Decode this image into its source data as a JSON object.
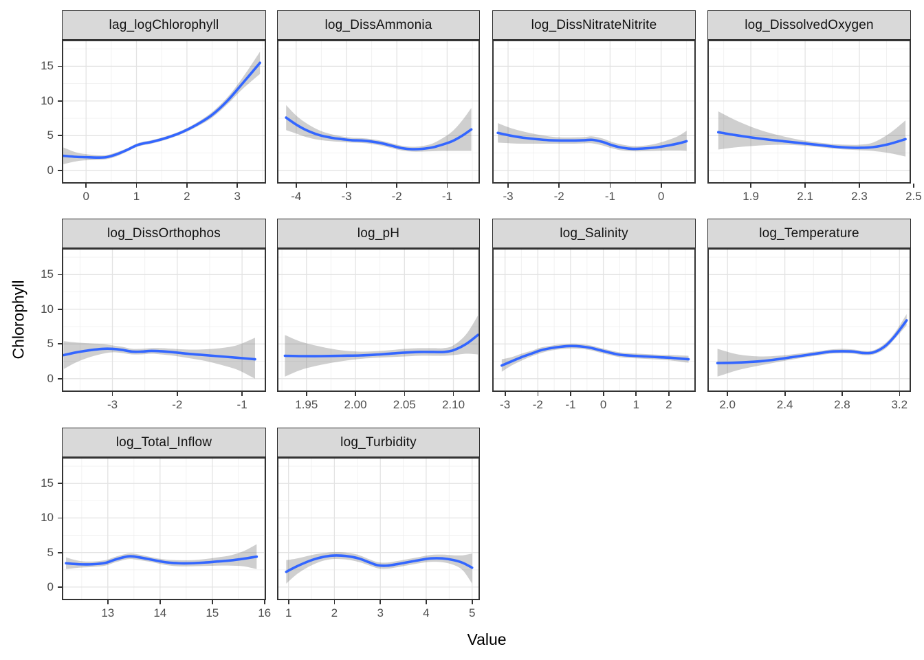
{
  "figure": {
    "colors": {
      "line": "#3366FF",
      "ribbon": "rgba(110,110,110,0.33)",
      "strip_bg": "#D9D9D9",
      "strip_border": "#2b2b2b",
      "panel_border": "#333333",
      "grid_major": "#E3E3E3",
      "grid_minor": "#F0F0F0",
      "axis_text": "#4D4D4D",
      "tick_mark": "#333333"
    }
  },
  "chart_data": {
    "type": "line",
    "title": "",
    "xlabel": "Value",
    "ylabel": "Chlorophyll",
    "ylim": [
      -1.9,
      18.8
    ],
    "yticks": [
      0,
      5,
      10,
      15
    ],
    "ytick_labels": [
      "0",
      "5",
      "10",
      "15"
    ],
    "grid": true,
    "legend": "none",
    "facets": [
      {
        "title": "lag_logChlorophyll",
        "row": 0,
        "col": 0,
        "xlim": [
          -0.48,
          3.57
        ],
        "xticks": [
          0,
          1,
          2,
          3
        ],
        "xtick_labels": [
          "0",
          "1",
          "2",
          "3"
        ],
        "x": [
          -0.45,
          -0.2,
          0.0,
          0.2,
          0.4,
          0.6,
          0.8,
          1.0,
          1.15,
          1.3,
          1.6,
          1.9,
          2.2,
          2.5,
          2.8,
          3.1,
          3.45
        ],
        "y": [
          2.1,
          1.95,
          1.9,
          1.85,
          1.9,
          2.3,
          2.9,
          3.6,
          3.9,
          4.1,
          4.7,
          5.5,
          6.6,
          8.0,
          10.0,
          12.5,
          15.5
        ],
        "lo": [
          0.9,
          1.3,
          1.45,
          1.5,
          1.6,
          2.0,
          2.65,
          3.35,
          3.65,
          3.85,
          4.45,
          5.25,
          6.3,
          7.6,
          9.5,
          11.7,
          13.9
        ],
        "hi": [
          3.3,
          2.6,
          2.35,
          2.2,
          2.2,
          2.6,
          3.15,
          3.85,
          4.15,
          4.35,
          4.95,
          5.75,
          6.9,
          8.4,
          10.5,
          13.3,
          17.1
        ]
      },
      {
        "title": "log_DissAmmonia",
        "row": 0,
        "col": 1,
        "xlim": [
          -4.38,
          -0.35
        ],
        "xticks": [
          -4,
          -3,
          -2,
          -1
        ],
        "xtick_labels": [
          "-4",
          "-3",
          "-2",
          "-1"
        ],
        "x": [
          -4.2,
          -4.0,
          -3.8,
          -3.55,
          -3.3,
          -3.1,
          -2.9,
          -2.7,
          -2.5,
          -2.3,
          -2.1,
          -1.9,
          -1.7,
          -1.5,
          -1.3,
          -1.1,
          -0.9,
          -0.7,
          -0.52
        ],
        "y": [
          7.6,
          6.6,
          5.8,
          5.1,
          4.7,
          4.5,
          4.35,
          4.3,
          4.15,
          3.9,
          3.55,
          3.2,
          3.05,
          3.1,
          3.3,
          3.7,
          4.2,
          5.0,
          5.9
        ],
        "lo": [
          5.8,
          5.3,
          4.8,
          4.4,
          4.2,
          4.1,
          4.0,
          3.95,
          3.8,
          3.55,
          3.2,
          2.85,
          2.7,
          2.7,
          2.75,
          2.8,
          2.8,
          2.8,
          2.8
        ],
        "hi": [
          9.4,
          7.9,
          6.8,
          5.8,
          5.2,
          4.9,
          4.7,
          4.65,
          4.5,
          4.25,
          3.9,
          3.55,
          3.4,
          3.5,
          3.85,
          4.6,
          5.6,
          7.2,
          9.0
        ]
      },
      {
        "title": "log_DissNitrateNitrite",
        "row": 0,
        "col": 2,
        "xlim": [
          -3.31,
          0.68
        ],
        "xticks": [
          -3,
          -2,
          -1,
          0
        ],
        "xtick_labels": [
          "-3",
          "-2",
          "-1",
          "0"
        ],
        "x": [
          -3.2,
          -2.95,
          -2.7,
          -2.45,
          -2.2,
          -1.95,
          -1.7,
          -1.5,
          -1.35,
          -1.15,
          -0.95,
          -0.75,
          -0.55,
          -0.35,
          -0.1,
          0.15,
          0.35,
          0.5
        ],
        "y": [
          5.4,
          5.0,
          4.7,
          4.5,
          4.35,
          4.3,
          4.3,
          4.35,
          4.4,
          4.1,
          3.6,
          3.25,
          3.1,
          3.15,
          3.3,
          3.6,
          3.9,
          4.2
        ],
        "lo": [
          4.0,
          3.9,
          3.85,
          3.85,
          3.85,
          3.85,
          3.85,
          3.9,
          3.9,
          3.6,
          3.15,
          2.85,
          2.75,
          2.75,
          2.8,
          2.85,
          2.85,
          2.8
        ],
        "hi": [
          6.8,
          6.1,
          5.6,
          5.2,
          4.9,
          4.75,
          4.75,
          4.8,
          4.9,
          4.6,
          4.05,
          3.7,
          3.5,
          3.55,
          3.85,
          4.4,
          5.0,
          5.7
        ]
      },
      {
        "title": "log_DissolvedOxygen",
        "row": 0,
        "col": 3,
        "xlim": [
          1.74,
          2.49
        ],
        "xticks": [
          1.9,
          2.1,
          2.3,
          2.5
        ],
        "xtick_labels": [
          "1.9",
          "2.1",
          "2.3",
          "2.5"
        ],
        "x": [
          1.78,
          1.84,
          1.9,
          1.96,
          2.02,
          2.08,
          2.14,
          2.2,
          2.25,
          2.3,
          2.35,
          2.41,
          2.47
        ],
        "y": [
          5.5,
          5.1,
          4.75,
          4.45,
          4.2,
          3.95,
          3.7,
          3.45,
          3.3,
          3.25,
          3.35,
          3.8,
          4.5
        ],
        "lo": [
          3.0,
          3.3,
          3.5,
          3.65,
          3.7,
          3.6,
          3.4,
          3.15,
          3.0,
          2.9,
          2.8,
          2.5,
          2.0
        ],
        "hi": [
          8.5,
          7.3,
          6.3,
          5.5,
          4.9,
          4.4,
          4.05,
          3.8,
          3.7,
          3.7,
          4.0,
          5.3,
          7.2
        ]
      },
      {
        "title": "log_DissOrthophos",
        "row": 1,
        "col": 0,
        "xlim": [
          -3.78,
          -0.63
        ],
        "xticks": [
          -3,
          -2,
          -1
        ],
        "xtick_labels": [
          "-3",
          "-2",
          "-1"
        ],
        "x": [
          -3.75,
          -3.55,
          -3.35,
          -3.15,
          -3.0,
          -2.85,
          -2.7,
          -2.55,
          -2.4,
          -2.25,
          -2.05,
          -1.85,
          -1.65,
          -1.45,
          -1.25,
          -1.05,
          -0.8
        ],
        "y": [
          3.4,
          3.8,
          4.1,
          4.3,
          4.3,
          4.15,
          3.9,
          3.9,
          4.0,
          3.95,
          3.8,
          3.6,
          3.45,
          3.3,
          3.15,
          3.0,
          2.8
        ],
        "lo": [
          1.4,
          2.4,
          3.1,
          3.6,
          3.8,
          3.7,
          3.5,
          3.5,
          3.6,
          3.5,
          3.3,
          3.0,
          2.7,
          2.3,
          1.8,
          1.2,
          0.0
        ],
        "hi": [
          5.4,
          5.2,
          5.1,
          5.0,
          4.8,
          4.6,
          4.3,
          4.3,
          4.4,
          4.4,
          4.3,
          4.2,
          4.2,
          4.3,
          4.5,
          4.9,
          5.9
        ]
      },
      {
        "title": "log_pH",
        "row": 1,
        "col": 1,
        "xlim": [
          1.92,
          2.127
        ],
        "xticks": [
          1.95,
          2.0,
          2.05,
          2.1
        ],
        "xtick_labels": [
          "1.95",
          "2.00",
          "2.05",
          "2.10"
        ],
        "x": [
          1.928,
          1.945,
          1.965,
          1.985,
          2.005,
          2.02,
          2.035,
          2.05,
          2.065,
          2.08,
          2.09,
          2.1,
          2.113,
          2.125
        ],
        "y": [
          3.3,
          3.25,
          3.25,
          3.3,
          3.35,
          3.45,
          3.6,
          3.75,
          3.85,
          3.85,
          3.85,
          4.1,
          5.0,
          6.3
        ],
        "lo": [
          0.3,
          1.3,
          2.0,
          2.5,
          2.85,
          3.0,
          3.1,
          3.2,
          3.3,
          3.3,
          3.3,
          3.4,
          3.6,
          3.5
        ],
        "hi": [
          6.3,
          5.3,
          4.6,
          4.1,
          3.9,
          3.95,
          4.1,
          4.3,
          4.4,
          4.4,
          4.4,
          4.8,
          6.4,
          9.1
        ]
      },
      {
        "title": "log_Salinity",
        "row": 1,
        "col": 2,
        "xlim": [
          -3.39,
          2.82
        ],
        "xticks": [
          -3,
          -2,
          -1,
          0,
          1,
          2
        ],
        "xtick_labels": [
          "-3",
          "-2",
          "-1",
          "0",
          "1",
          "2"
        ],
        "x": [
          -3.1,
          -2.8,
          -2.5,
          -2.2,
          -1.9,
          -1.6,
          -1.3,
          -1.0,
          -0.7,
          -0.4,
          -0.1,
          0.2,
          0.5,
          0.9,
          1.3,
          1.7,
          2.1,
          2.6
        ],
        "y": [
          1.9,
          2.5,
          3.1,
          3.6,
          4.1,
          4.4,
          4.6,
          4.7,
          4.65,
          4.45,
          4.1,
          3.75,
          3.45,
          3.3,
          3.2,
          3.1,
          3.0,
          2.8
        ],
        "lo": [
          1.0,
          1.9,
          2.6,
          3.2,
          3.7,
          4.05,
          4.25,
          4.35,
          4.3,
          4.1,
          3.75,
          3.4,
          3.1,
          2.95,
          2.85,
          2.75,
          2.6,
          2.3
        ],
        "hi": [
          2.8,
          3.1,
          3.6,
          4.0,
          4.5,
          4.75,
          4.95,
          5.05,
          5.0,
          4.8,
          4.45,
          4.1,
          3.8,
          3.65,
          3.55,
          3.45,
          3.4,
          3.3
        ]
      },
      {
        "title": "log_Temperature",
        "row": 1,
        "col": 3,
        "xlim": [
          1.86,
          3.28
        ],
        "xticks": [
          2.0,
          2.4,
          2.8,
          3.2
        ],
        "xtick_labels": [
          "2.0",
          "2.4",
          "2.8",
          "3.2"
        ],
        "x": [
          1.93,
          2.05,
          2.15,
          2.25,
          2.35,
          2.45,
          2.55,
          2.65,
          2.72,
          2.8,
          2.88,
          2.95,
          3.02,
          3.1,
          3.17,
          3.25
        ],
        "y": [
          2.25,
          2.3,
          2.4,
          2.55,
          2.8,
          3.1,
          3.4,
          3.7,
          3.9,
          3.95,
          3.9,
          3.7,
          3.8,
          4.7,
          6.2,
          8.4
        ],
        "lo": [
          0.3,
          1.1,
          1.6,
          2.0,
          2.4,
          2.75,
          3.1,
          3.4,
          3.6,
          3.65,
          3.6,
          3.4,
          3.5,
          4.3,
          5.8,
          7.7
        ],
        "hi": [
          4.3,
          3.6,
          3.3,
          3.2,
          3.3,
          3.5,
          3.75,
          4.0,
          4.2,
          4.3,
          4.2,
          4.0,
          4.1,
          5.1,
          6.7,
          9.3
        ]
      },
      {
        "title": "log_Total_Inflow",
        "row": 2,
        "col": 0,
        "xlim": [
          12.12,
          16.03
        ],
        "xticks": [
          13,
          14,
          15,
          16
        ],
        "xtick_labels": [
          "13",
          "14",
          "15",
          "16"
        ],
        "x": [
          12.2,
          12.45,
          12.7,
          12.95,
          13.15,
          13.4,
          13.6,
          13.85,
          14.1,
          14.35,
          14.6,
          14.85,
          15.1,
          15.35,
          15.6,
          15.85
        ],
        "y": [
          3.45,
          3.3,
          3.3,
          3.5,
          4.0,
          4.45,
          4.3,
          3.95,
          3.6,
          3.45,
          3.45,
          3.55,
          3.7,
          3.85,
          4.1,
          4.4
        ],
        "lo": [
          2.6,
          2.8,
          2.9,
          3.1,
          3.6,
          4.05,
          3.9,
          3.6,
          3.2,
          3.0,
          3.0,
          3.05,
          3.1,
          3.1,
          3.0,
          2.6
        ],
        "hi": [
          4.3,
          3.8,
          3.7,
          3.9,
          4.4,
          4.85,
          4.7,
          4.3,
          4.0,
          3.9,
          3.9,
          4.05,
          4.3,
          4.6,
          5.2,
          6.2
        ]
      },
      {
        "title": "log_Turbidity",
        "row": 2,
        "col": 1,
        "xlim": [
          0.75,
          5.17
        ],
        "xticks": [
          1,
          2,
          3,
          4,
          5
        ],
        "xtick_labels": [
          "1",
          "2",
          "3",
          "4",
          "5"
        ],
        "x": [
          0.95,
          1.15,
          1.35,
          1.55,
          1.75,
          1.95,
          2.15,
          2.35,
          2.55,
          2.75,
          2.95,
          3.15,
          3.35,
          3.6,
          3.85,
          4.1,
          4.35,
          4.6,
          4.8,
          5.0
        ],
        "y": [
          2.2,
          2.9,
          3.5,
          4.0,
          4.35,
          4.55,
          4.55,
          4.4,
          4.1,
          3.6,
          3.15,
          3.1,
          3.3,
          3.6,
          3.9,
          4.15,
          4.15,
          3.9,
          3.5,
          2.8
        ],
        "lo": [
          0.5,
          1.7,
          2.6,
          3.3,
          3.8,
          4.05,
          4.05,
          3.9,
          3.6,
          3.15,
          2.7,
          2.65,
          2.85,
          3.15,
          3.45,
          3.65,
          3.6,
          3.2,
          2.4,
          0.5
        ],
        "hi": [
          3.9,
          4.1,
          4.4,
          4.7,
          4.9,
          5.05,
          5.05,
          4.9,
          4.6,
          4.05,
          3.6,
          3.55,
          3.75,
          4.05,
          4.35,
          4.65,
          4.7,
          4.6,
          4.6,
          4.85
        ]
      }
    ]
  }
}
